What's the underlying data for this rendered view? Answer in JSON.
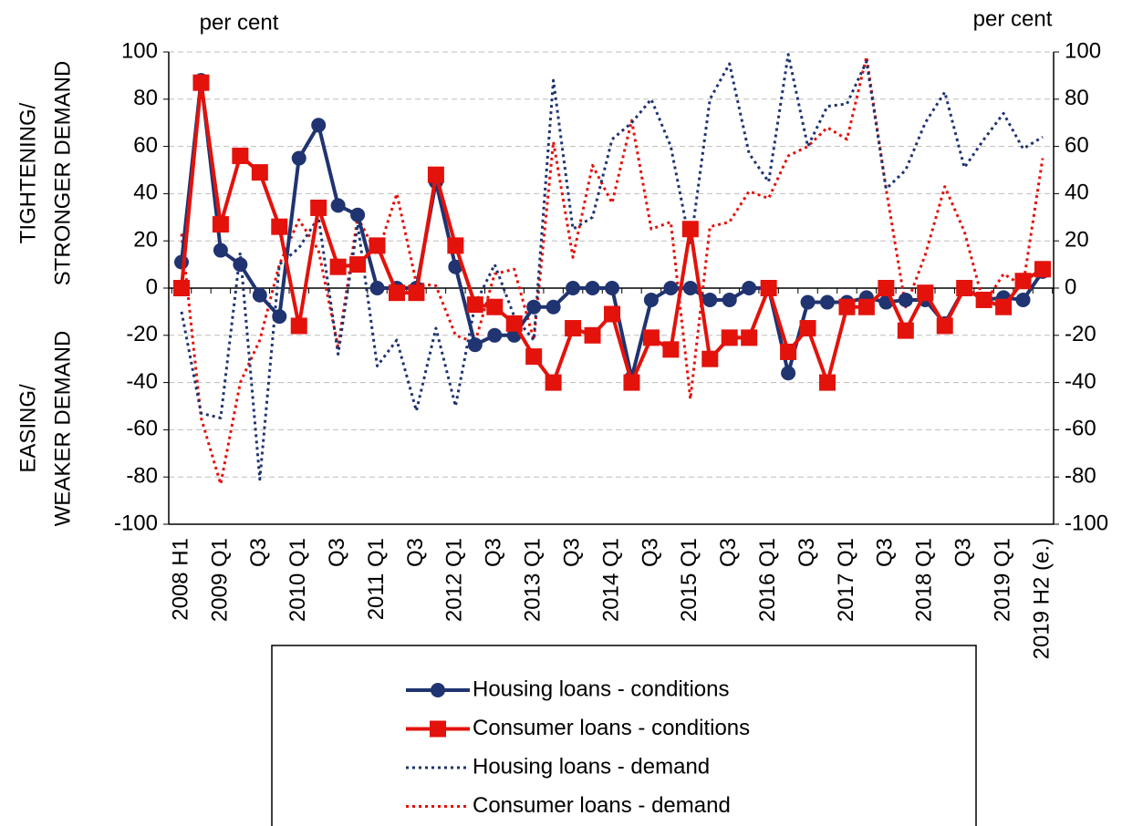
{
  "chart_data": {
    "type": "line",
    "left_unit": "per cent",
    "right_unit": "per cent",
    "y_axis_labels": {
      "upper": [
        "TIGHTENING/",
        "STRONGER DEMAND"
      ],
      "lower": [
        "EASING/",
        "WEAKER DEMAND"
      ]
    },
    "categories": [
      "2008 H1",
      null,
      "2009 Q1",
      null,
      "Q3",
      null,
      "2010 Q1",
      null,
      "Q3",
      null,
      "2011 Q1",
      null,
      "Q3",
      null,
      "2012 Q1",
      null,
      "Q3",
      null,
      "2013 Q1",
      null,
      "Q3",
      null,
      "2014 Q1",
      null,
      "Q3",
      null,
      "2015 Q1",
      null,
      "Q3",
      null,
      "2016 Q1",
      null,
      "Q3",
      null,
      "2017 Q1",
      null,
      "Q3",
      null,
      "2018 Q1",
      null,
      "Q3",
      null,
      "2019 Q1",
      null,
      "2019 H2 (e.)"
    ],
    "ylim": [
      -100,
      100
    ],
    "yticks": [
      -100,
      -80,
      -60,
      -40,
      -20,
      0,
      20,
      40,
      60,
      80,
      100
    ],
    "y2lim": [
      -100,
      100
    ],
    "y2ticks": [
      -100,
      -80,
      -60,
      -40,
      -20,
      0,
      20,
      40,
      60,
      80,
      100
    ],
    "grid": true,
    "series": [
      {
        "name": "Housing loans - conditions",
        "color": "#1f3470",
        "marker": "circle",
        "dash": "solid",
        "values": [
          11,
          88,
          16,
          10,
          -3,
          -12,
          55,
          69,
          35,
          31,
          0,
          0,
          0,
          45,
          9,
          -24,
          -20,
          -20,
          -8,
          -8,
          0,
          0,
          0,
          -38,
          -5,
          0,
          0,
          -5,
          -5,
          0,
          0,
          -36,
          -6,
          -6,
          -6,
          -4,
          -6,
          -5,
          -5,
          -15,
          0,
          -5,
          -4,
          -5,
          7
        ]
      },
      {
        "name": "Consumer loans - conditions",
        "color": "#e3120b",
        "marker": "square",
        "dash": "solid",
        "values": [
          0,
          87,
          27,
          56,
          49,
          26,
          -16,
          34,
          9,
          10,
          18,
          -2,
          -2,
          48,
          18,
          -7,
          -8,
          -15,
          -29,
          -40,
          -17,
          -20,
          -11,
          -40,
          -21,
          -26,
          25,
          -30,
          -21,
          -21,
          0,
          -27,
          -17,
          -40,
          -8,
          -8,
          0,
          -18,
          -2,
          -16,
          0,
          -5,
          -8,
          3,
          8
        ]
      },
      {
        "name": "Housing loans - demand",
        "color": "#1f3470",
        "marker": null,
        "dash": "dotted",
        "values": [
          -10,
          -53,
          -55,
          15,
          -81,
          10,
          17,
          30,
          -28,
          27,
          -33,
          -22,
          -52,
          -17,
          -50,
          -7,
          10,
          -12,
          -22,
          88,
          25,
          30,
          63,
          70,
          80,
          60,
          18,
          80,
          95,
          57,
          45,
          99,
          60,
          77,
          78,
          96,
          42,
          50,
          70,
          83,
          51,
          63,
          74,
          59,
          64
        ]
      },
      {
        "name": "Consumer loans - demand",
        "color": "#e3120b",
        "marker": null,
        "dash": "dotted",
        "values": [
          23,
          -55,
          -83,
          -40,
          -22,
          10,
          29,
          16,
          -25,
          30,
          14,
          40,
          2,
          1,
          -20,
          -23,
          6,
          8,
          -22,
          62,
          13,
          52,
          36,
          71,
          25,
          28,
          -47,
          26,
          28,
          41,
          38,
          56,
          60,
          68,
          63,
          98,
          42,
          -8,
          14,
          43,
          24,
          -7,
          6,
          1,
          55
        ]
      }
    ]
  }
}
